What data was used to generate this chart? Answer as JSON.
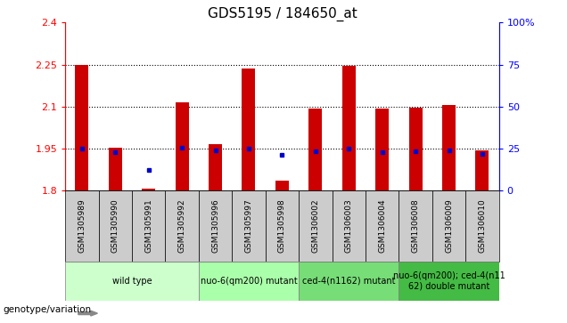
{
  "title": "GDS5195 / 184650_at",
  "samples": [
    "GSM1305989",
    "GSM1305990",
    "GSM1305991",
    "GSM1305992",
    "GSM1305996",
    "GSM1305997",
    "GSM1305998",
    "GSM1306002",
    "GSM1306003",
    "GSM1306004",
    "GSM1306008",
    "GSM1306009",
    "GSM1306010"
  ],
  "red_values": [
    2.248,
    1.952,
    1.808,
    2.115,
    1.966,
    2.237,
    1.834,
    2.094,
    2.244,
    2.094,
    2.097,
    2.106,
    1.944
  ],
  "blue_values": [
    1.949,
    1.937,
    1.873,
    1.952,
    1.945,
    1.95,
    1.929,
    1.94,
    1.949,
    1.936,
    1.94,
    1.942,
    1.932
  ],
  "ymin": 1.8,
  "ymax": 2.4,
  "yticks": [
    1.8,
    1.95,
    2.1,
    2.25,
    2.4
  ],
  "right_yticks": [
    0,
    25,
    50,
    75,
    100
  ],
  "groups": [
    {
      "label": "wild type",
      "indices": [
        0,
        1,
        2,
        3
      ],
      "color": "#ccffcc"
    },
    {
      "label": "nuo-6(qm200) mutant",
      "indices": [
        4,
        5,
        6
      ],
      "color": "#aaffaa"
    },
    {
      "label": "ced-4(n1162) mutant",
      "indices": [
        7,
        8,
        9
      ],
      "color": "#77dd77"
    },
    {
      "label": "nuo-6(qm200); ced-4(n11\n62) double mutant",
      "indices": [
        10,
        11,
        12
      ],
      "color": "#44bb44"
    }
  ],
  "bar_color": "#cc0000",
  "dot_color": "#0000cc",
  "bar_width": 0.4,
  "tick_label_fontsize": 6.5,
  "title_fontsize": 11,
  "group_label_fontsize": 7
}
